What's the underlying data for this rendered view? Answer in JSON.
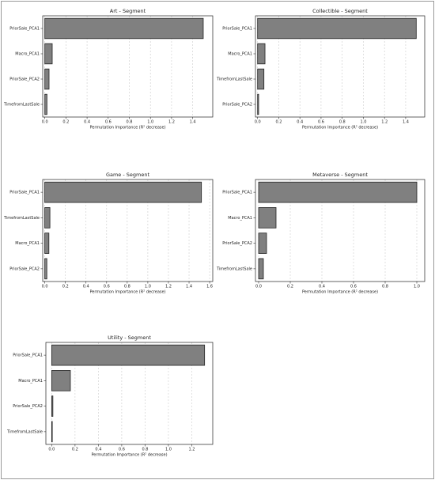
{
  "chart_data": [
    {
      "type": "barh",
      "title": "Art - Segment",
      "xlabel": "Permutation Importance (R² decrease)",
      "categories": [
        "PriorSale_PCA1",
        "Macro_PCA1",
        "PriorSale_PCA2",
        "TimefromLastSale"
      ],
      "values": [
        1.5,
        0.07,
        0.04,
        0.02
      ],
      "color": "#808080",
      "grid": true,
      "xlim": [
        -0.02,
        1.59
      ],
      "xticks": [
        {
          "value": 0,
          "label": "0.0"
        },
        0.2,
        0.4,
        0.6,
        0.8,
        {
          "value": 1,
          "label": "1.0"
        },
        1.2,
        1.4
      ]
    },
    {
      "type": "barh",
      "title": "Collectible - Segment",
      "xlabel": "Permutation Importance (R² decrease)",
      "categories": [
        "PriorSale_PCA1",
        "Macro_PCA1",
        "TimefromLastSale",
        "PriorSale_PCA2"
      ],
      "values": [
        1.5,
        0.07,
        0.06,
        0.01
      ],
      "color": "#808080",
      "grid": true,
      "xlim": [
        -0.02,
        1.58
      ],
      "xticks": [
        {
          "value": 0,
          "label": "0.0"
        },
        0.2,
        0.4,
        0.6,
        0.8,
        {
          "value": 1,
          "label": "1.0"
        },
        1.2,
        1.4
      ]
    },
    {
      "type": "barh",
      "title": "Game - Segment",
      "xlabel": "Permutation Importance (R² decrease)",
      "categories": [
        "PriorSale_PCA1",
        "TimefromLastSale",
        "Macro_PCA1",
        "PriorSale_PCA2"
      ],
      "values": [
        1.52,
        0.05,
        0.04,
        0.02
      ],
      "color": "#808080",
      "grid": true,
      "xlim": [
        -0.02,
        1.63
      ],
      "xticks": [
        {
          "value": 0,
          "label": "0.0"
        },
        0.2,
        0.4,
        0.6,
        0.8,
        {
          "value": 1,
          "label": "1.0"
        },
        1.2,
        1.4,
        1.6
      ]
    },
    {
      "type": "barh",
      "title": "Metaverse - Segment",
      "xlabel": "Permutation Importance (R² decrease)",
      "categories": [
        "PriorSale_PCA1",
        "Macro_PCA1",
        "PriorSale_PCA2",
        "TimefromLastSale"
      ],
      "values": [
        1.0,
        0.11,
        0.05,
        0.03
      ],
      "color": "#808080",
      "grid": true,
      "xlim": [
        -0.02,
        1.05
      ],
      "xticks": [
        {
          "value": 0,
          "label": "0.0"
        },
        0.2,
        0.4,
        0.6,
        0.8,
        {
          "value": 1,
          "label": "1.0"
        }
      ]
    },
    {
      "type": "barh",
      "title": "Utility - Segment",
      "xlabel": "Permutation Importance (R² decrease)",
      "categories": [
        "PriorSale_PCA1",
        "Macro_PCA1",
        "PriorSale_PCA2",
        "TimefromLastSale"
      ],
      "values": [
        1.31,
        0.16,
        0.01,
        0.005
      ],
      "color": "#808080",
      "grid": true,
      "xlim": [
        -0.05,
        1.38
      ],
      "xticks": [
        {
          "value": 0,
          "label": "0.0"
        },
        0.2,
        0.4,
        0.6,
        0.8,
        {
          "value": 1,
          "label": "1.0"
        },
        1.2
      ]
    }
  ]
}
